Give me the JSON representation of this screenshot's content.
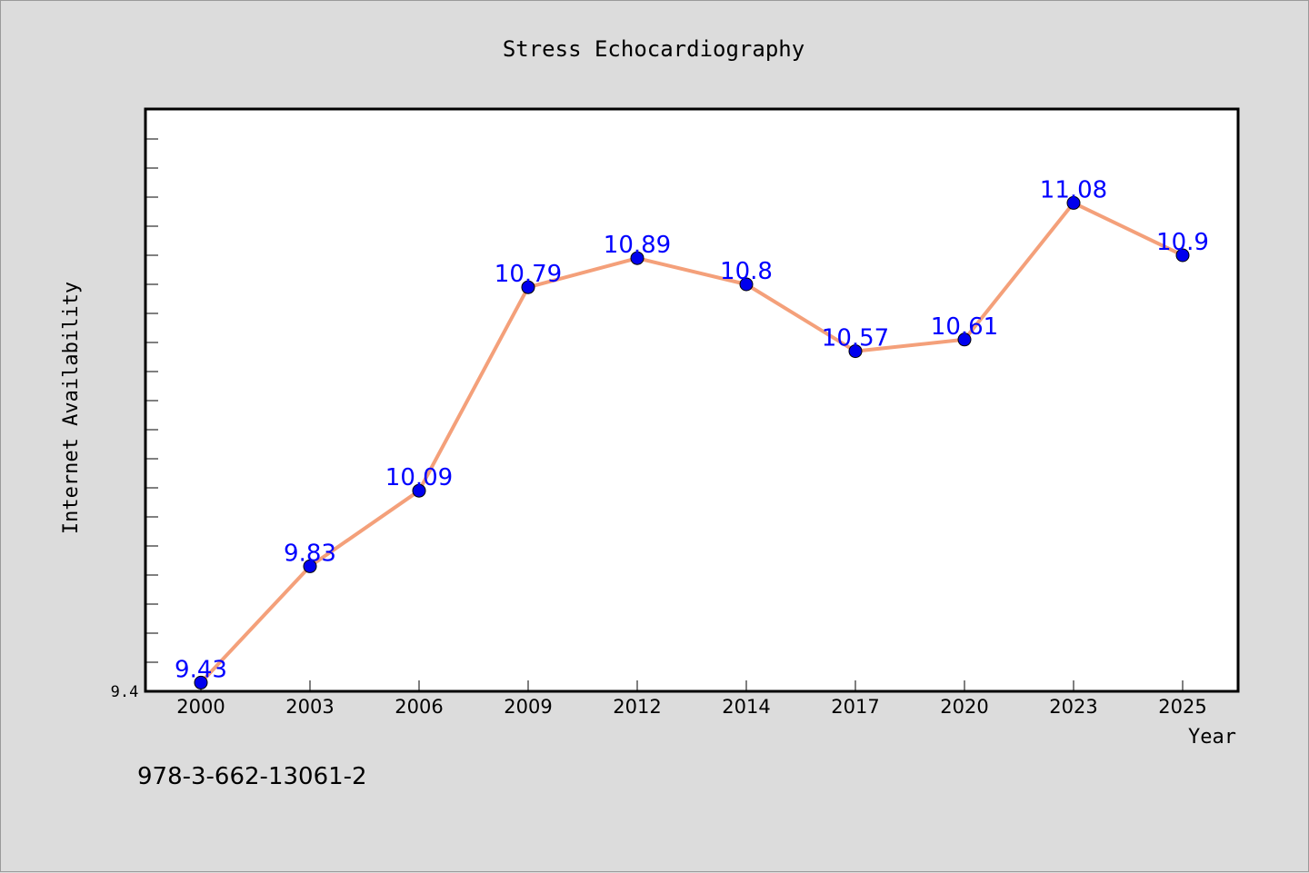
{
  "chart_data": {
    "type": "line",
    "title": "Stress Echocardiography",
    "xlabel": "Year",
    "ylabel": "Internet Availability",
    "categories": [
      "2000",
      "2003",
      "2006",
      "2009",
      "2012",
      "2014",
      "2017",
      "2020",
      "2023",
      "2025"
    ],
    "values": [
      9.43,
      9.83,
      10.09,
      10.79,
      10.89,
      10.8,
      10.57,
      10.61,
      11.08,
      10.9
    ],
    "value_labels": [
      "9.43",
      "9.83",
      "10.09",
      "10.79",
      "10.89",
      "10.8",
      "10.57",
      "10.61",
      "11.08",
      "10.9"
    ],
    "ylim": [
      9.4,
      11.4
    ],
    "y_tick_label": "9.4",
    "grid": false,
    "legend": "none",
    "line_color": "#f4a07a",
    "marker_color": "#0000ee",
    "label_color": "#0000ff"
  },
  "annotation": {
    "isbn": "978-3-662-13061-2"
  }
}
